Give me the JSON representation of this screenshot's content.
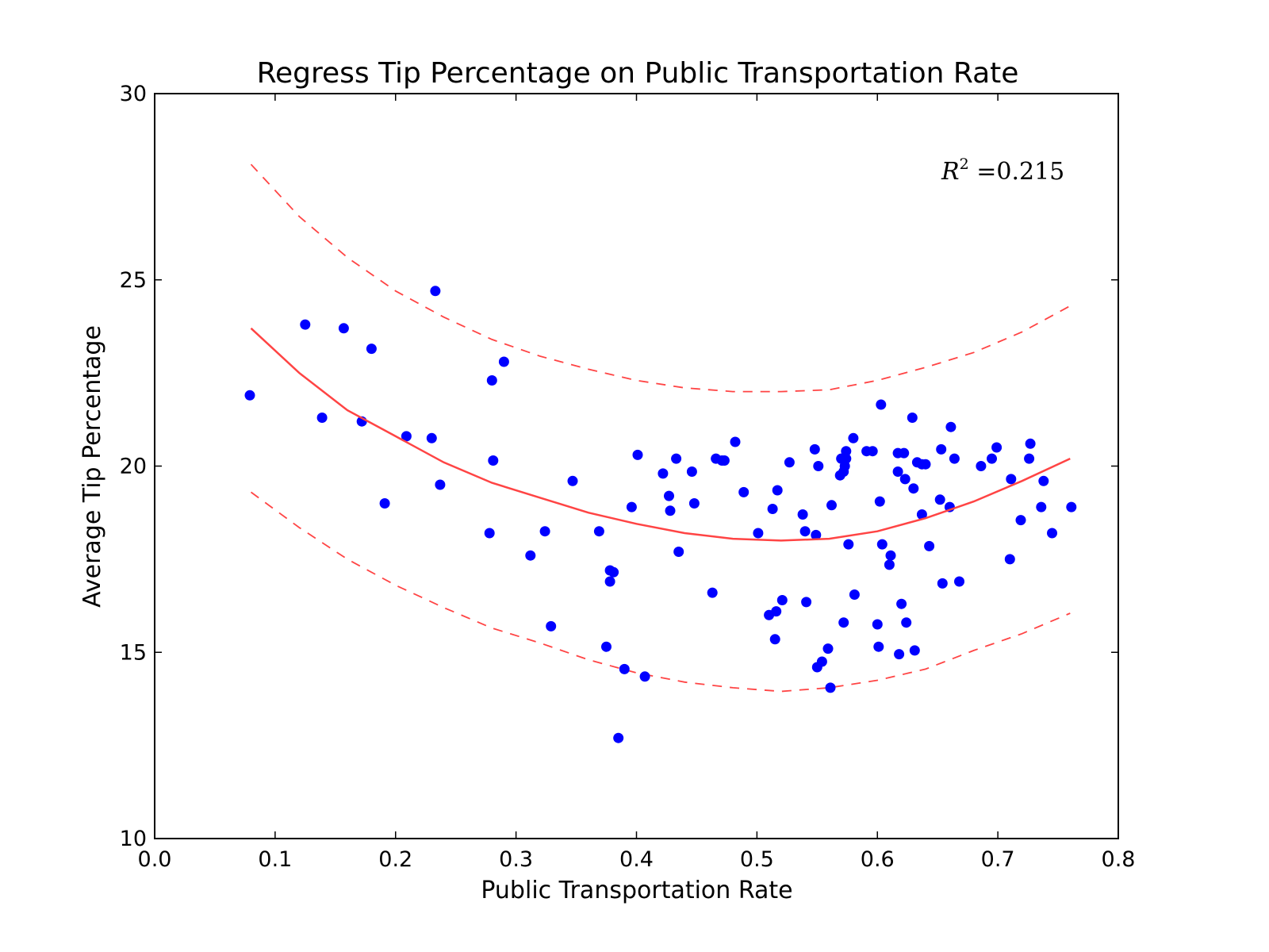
{
  "chart_data": {
    "type": "scatter",
    "title": "Regress Tip Percentage on Public Transportation Rate",
    "xlabel": "Public Transportation Rate",
    "ylabel": "Average Tip Percentage",
    "xlim": [
      0.0,
      0.8
    ],
    "ylim": [
      10,
      30
    ],
    "xticks": [
      "0.0",
      "0.1",
      "0.2",
      "0.3",
      "0.4",
      "0.5",
      "0.6",
      "0.7",
      "0.8"
    ],
    "yticks": [
      "10",
      "15",
      "20",
      "25",
      "30"
    ],
    "grid": false,
    "annotation": {
      "base": "R",
      "sup": "2",
      "eq": " =",
      "value": "0.215"
    },
    "colors": {
      "points": "#0000ff",
      "fit": "#ff4444",
      "frame": "#000000"
    },
    "fit_curve": {
      "style": "solid",
      "x": [
        0.08,
        0.12,
        0.16,
        0.2,
        0.24,
        0.28,
        0.32,
        0.36,
        0.4,
        0.44,
        0.48,
        0.52,
        0.56,
        0.6,
        0.64,
        0.68,
        0.72,
        0.76
      ],
      "y": [
        23.7,
        22.5,
        21.5,
        20.8,
        20.1,
        19.55,
        19.15,
        18.75,
        18.45,
        18.2,
        18.05,
        18.0,
        18.05,
        18.25,
        18.6,
        19.05,
        19.6,
        20.2
      ]
    },
    "upper_band": {
      "style": "dashed",
      "x": [
        0.08,
        0.12,
        0.16,
        0.2,
        0.24,
        0.28,
        0.32,
        0.36,
        0.4,
        0.44,
        0.48,
        0.52,
        0.56,
        0.6,
        0.64,
        0.68,
        0.72,
        0.76
      ],
      "y": [
        28.1,
        26.7,
        25.6,
        24.7,
        24.0,
        23.4,
        22.95,
        22.6,
        22.3,
        22.1,
        22.0,
        22.0,
        22.05,
        22.3,
        22.65,
        23.05,
        23.6,
        24.3
      ]
    },
    "lower_band": {
      "style": "dashed",
      "x": [
        0.08,
        0.12,
        0.16,
        0.2,
        0.24,
        0.28,
        0.32,
        0.36,
        0.4,
        0.44,
        0.48,
        0.52,
        0.56,
        0.6,
        0.64,
        0.68,
        0.72,
        0.76
      ],
      "y": [
        19.3,
        18.35,
        17.5,
        16.8,
        16.2,
        15.65,
        15.25,
        14.8,
        14.45,
        14.2,
        14.05,
        13.95,
        14.05,
        14.25,
        14.55,
        15.05,
        15.5,
        16.05
      ]
    },
    "points": [
      [
        0.079,
        21.9
      ],
      [
        0.125,
        23.8
      ],
      [
        0.139,
        21.3
      ],
      [
        0.157,
        23.7
      ],
      [
        0.172,
        21.2
      ],
      [
        0.18,
        23.15
      ],
      [
        0.191,
        19.0
      ],
      [
        0.209,
        20.8
      ],
      [
        0.23,
        20.75
      ],
      [
        0.233,
        24.7
      ],
      [
        0.237,
        19.5
      ],
      [
        0.278,
        18.2
      ],
      [
        0.28,
        22.3
      ],
      [
        0.281,
        20.15
      ],
      [
        0.29,
        22.8
      ],
      [
        0.312,
        17.6
      ],
      [
        0.324,
        18.25
      ],
      [
        0.329,
        15.7
      ],
      [
        0.347,
        19.6
      ],
      [
        0.369,
        18.25
      ],
      [
        0.375,
        15.15
      ],
      [
        0.378,
        17.2
      ],
      [
        0.378,
        16.9
      ],
      [
        0.381,
        17.15
      ],
      [
        0.385,
        12.7
      ],
      [
        0.39,
        14.55
      ],
      [
        0.396,
        18.9
      ],
      [
        0.401,
        20.3
      ],
      [
        0.407,
        14.35
      ],
      [
        0.422,
        19.8
      ],
      [
        0.427,
        19.2
      ],
      [
        0.428,
        18.8
      ],
      [
        0.433,
        20.2
      ],
      [
        0.435,
        17.7
      ],
      [
        0.446,
        19.85
      ],
      [
        0.448,
        19.0
      ],
      [
        0.463,
        16.6
      ],
      [
        0.466,
        20.2
      ],
      [
        0.471,
        20.15
      ],
      [
        0.473,
        20.15
      ],
      [
        0.482,
        20.65
      ],
      [
        0.489,
        19.3
      ],
      [
        0.501,
        18.2
      ],
      [
        0.51,
        16.0
      ],
      [
        0.513,
        18.85
      ],
      [
        0.515,
        15.35
      ],
      [
        0.516,
        16.1
      ],
      [
        0.517,
        19.35
      ],
      [
        0.521,
        16.4
      ],
      [
        0.527,
        20.1
      ],
      [
        0.538,
        18.7
      ],
      [
        0.54,
        18.25
      ],
      [
        0.541,
        16.35
      ],
      [
        0.548,
        20.45
      ],
      [
        0.549,
        18.15
      ],
      [
        0.55,
        14.6
      ],
      [
        0.551,
        20.0
      ],
      [
        0.554,
        14.75
      ],
      [
        0.559,
        15.1
      ],
      [
        0.561,
        14.05
      ],
      [
        0.562,
        18.95
      ],
      [
        0.569,
        19.75
      ],
      [
        0.57,
        20.2
      ],
      [
        0.572,
        19.85
      ],
      [
        0.572,
        15.8
      ],
      [
        0.573,
        20.0
      ],
      [
        0.574,
        20.4
      ],
      [
        0.574,
        20.2
      ],
      [
        0.576,
        17.9
      ],
      [
        0.58,
        20.75
      ],
      [
        0.581,
        16.55
      ],
      [
        0.591,
        20.4
      ],
      [
        0.596,
        20.4
      ],
      [
        0.6,
        15.75
      ],
      [
        0.601,
        15.15
      ],
      [
        0.602,
        19.05
      ],
      [
        0.603,
        21.65
      ],
      [
        0.604,
        17.9
      ],
      [
        0.61,
        17.35
      ],
      [
        0.611,
        17.6
      ],
      [
        0.617,
        20.35
      ],
      [
        0.617,
        19.85
      ],
      [
        0.618,
        14.95
      ],
      [
        0.62,
        16.3
      ],
      [
        0.622,
        20.35
      ],
      [
        0.623,
        19.65
      ],
      [
        0.624,
        15.8
      ],
      [
        0.629,
        21.3
      ],
      [
        0.63,
        19.4
      ],
      [
        0.631,
        15.05
      ],
      [
        0.633,
        20.1
      ],
      [
        0.637,
        18.7
      ],
      [
        0.637,
        20.05
      ],
      [
        0.64,
        20.05
      ],
      [
        0.643,
        17.85
      ],
      [
        0.652,
        19.1
      ],
      [
        0.653,
        20.45
      ],
      [
        0.654,
        16.85
      ],
      [
        0.66,
        18.9
      ],
      [
        0.661,
        21.05
      ],
      [
        0.664,
        20.2
      ],
      [
        0.668,
        16.9
      ],
      [
        0.686,
        20.0
      ],
      [
        0.695,
        20.2
      ],
      [
        0.699,
        20.5
      ],
      [
        0.71,
        17.5
      ],
      [
        0.711,
        19.65
      ],
      [
        0.719,
        18.55
      ],
      [
        0.726,
        20.2
      ],
      [
        0.727,
        20.6
      ],
      [
        0.736,
        18.9
      ],
      [
        0.738,
        19.6
      ],
      [
        0.745,
        18.2
      ],
      [
        0.761,
        18.9
      ]
    ]
  }
}
